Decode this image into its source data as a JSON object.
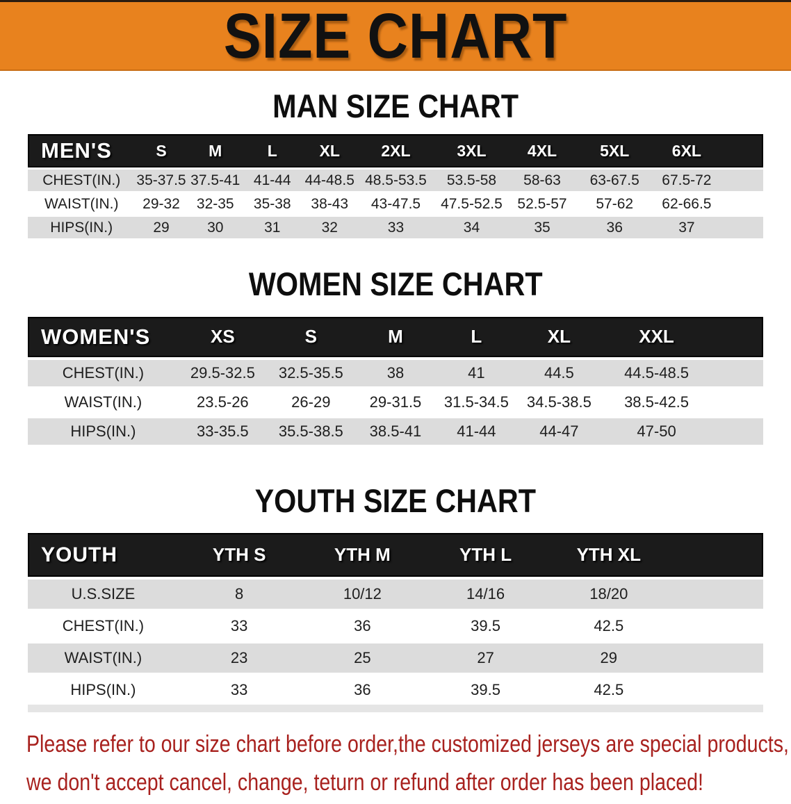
{
  "banner": {
    "title": "SIZE CHART"
  },
  "colors": {
    "banner_bg": "#E8821E",
    "header_bar": "#1B1B1B",
    "row_stripe": "#DCDCDC",
    "notice_red": "#A8211E"
  },
  "sections": [
    {
      "heading": "MAN SIZE CHART",
      "table": {
        "header": [
          "MEN'S",
          "S",
          "M",
          "L",
          "XL",
          "2XL",
          "3XL",
          "4XL",
          "5XL",
          "6XL"
        ],
        "rows": [
          [
            "CHEST(IN.)",
            "35-37.5",
            "37.5-41",
            "41-44",
            "44-48.5",
            "48.5-53.5",
            "53.5-58",
            "58-63",
            "63-67.5",
            "67.5-72"
          ],
          [
            "WAIST(IN.)",
            "29-32",
            "32-35",
            "35-38",
            "38-43",
            "43-47.5",
            "47.5-52.5",
            "52.5-57",
            "57-62",
            "62-66.5"
          ],
          [
            "HIPS(IN.)",
            "29",
            "30",
            "31",
            "32",
            "33",
            "34",
            "35",
            "36",
            "37"
          ]
        ]
      }
    },
    {
      "heading": "WOMEN SIZE CHART",
      "table": {
        "header": [
          "WOMEN'S",
          "XS",
          "S",
          "M",
          "L",
          "XL",
          "XXL"
        ],
        "rows": [
          [
            "CHEST(IN.)",
            "29.5-32.5",
            "32.5-35.5",
            "38",
            "41",
            "44.5",
            "44.5-48.5"
          ],
          [
            "WAIST(IN.)",
            "23.5-26",
            "26-29",
            "29-31.5",
            "31.5-34.5",
            "34.5-38.5",
            "38.5-42.5"
          ],
          [
            "HIPS(IN.)",
            "33-35.5",
            "35.5-38.5",
            "38.5-41",
            "41-44",
            "44-47",
            "47-50"
          ]
        ]
      }
    },
    {
      "heading": "YOUTH SIZE CHART",
      "table": {
        "header": [
          "YOUTH",
          "YTH S",
          "YTH M",
          "YTH L",
          "YTH XL"
        ],
        "rows": [
          [
            "U.S.SIZE",
            "8",
            "10/12",
            "14/16",
            "18/20"
          ],
          [
            "CHEST(IN.)",
            "33",
            "36",
            "39.5",
            "42.5"
          ],
          [
            "WAIST(IN.)",
            "23",
            "25",
            "27",
            "29"
          ],
          [
            "HIPS(IN.)",
            "33",
            "36",
            "39.5",
            "42.5"
          ]
        ]
      }
    }
  ],
  "footer": {
    "line1": "Please refer to our size chart before order,the customized jerseys are special products,",
    "line2": "we don't accept cancel, change, teturn or refund after order has been placed!"
  }
}
